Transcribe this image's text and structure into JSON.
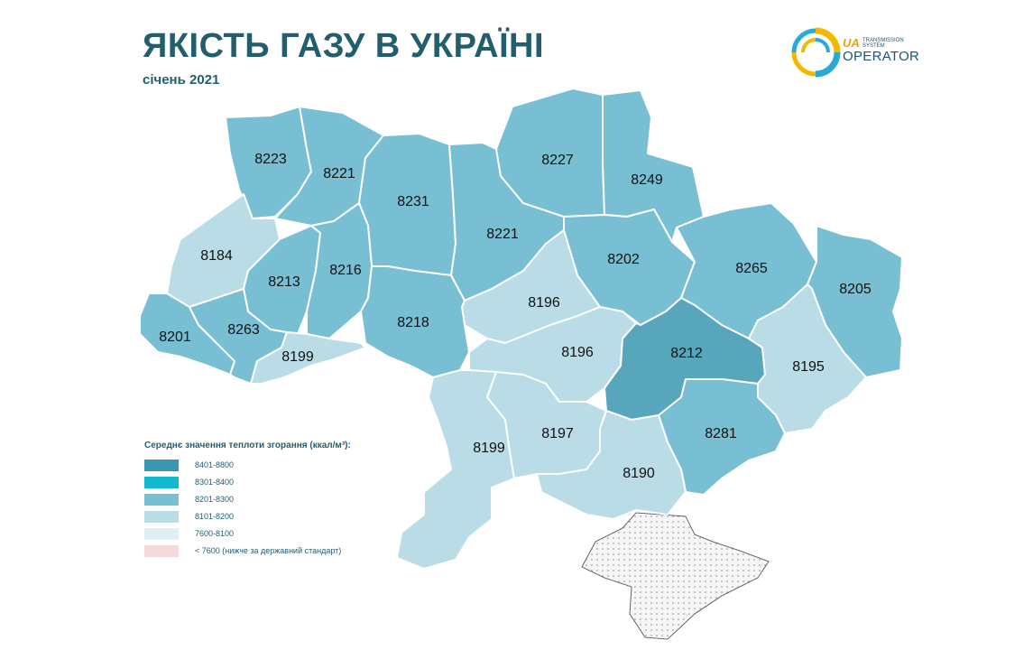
{
  "header": {
    "title": "ЯКІСТЬ ГАЗУ В УКРАЇНІ",
    "subtitle": "січень 2021"
  },
  "logo": {
    "ua": "UA",
    "small_line1": "TRANSMISSION",
    "small_line2": "SYSTEM",
    "operator": "OPERATOR"
  },
  "colors": {
    "c8401": "#3a97b1",
    "c8301": "#14b9cf",
    "c8201": "#78bfd3",
    "c8101": "#b9dce6",
    "c7600": "#dff0f5",
    "c7600below": "#f3d9d9",
    "crimea": "#f6f6f6"
  },
  "regions": [
    {
      "value": "8223"
    },
    {
      "value": "8221"
    },
    {
      "value": "8231"
    },
    {
      "value": "8221"
    },
    {
      "value": "8227"
    },
    {
      "value": "8249"
    },
    {
      "value": "8184"
    },
    {
      "value": "8213"
    },
    {
      "value": "8216"
    },
    {
      "value": "8202"
    },
    {
      "value": "8265"
    },
    {
      "value": "8205"
    },
    {
      "value": "8196"
    },
    {
      "value": "8201"
    },
    {
      "value": "8263"
    },
    {
      "value": "8218"
    },
    {
      "value": "8196"
    },
    {
      "value": "8212"
    },
    {
      "value": "8195"
    },
    {
      "value": "8199"
    },
    {
      "value": "8199"
    },
    {
      "value": "8197"
    },
    {
      "value": "8281"
    },
    {
      "value": "8190"
    }
  ],
  "legend": {
    "title": "Середнє значення теплоти згорання (ккал/м³):",
    "items": [
      {
        "label": "8401-8800",
        "color": "#3a97b1"
      },
      {
        "label": "8301-8400",
        "color": "#14b9cf"
      },
      {
        "label": "8201-8300",
        "color": "#78bfd3"
      },
      {
        "label": "8101-8200",
        "color": "#b9dce6"
      },
      {
        "label": "7600-8100",
        "color": "#dff0f5"
      },
      {
        "label": "< 7600 (нижче за державний стандарт)",
        "color": "#f3d9d9"
      }
    ]
  }
}
